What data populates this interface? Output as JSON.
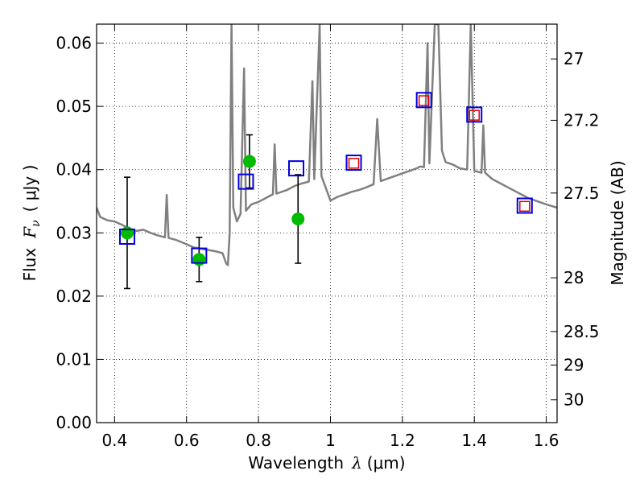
{
  "chart_data": {
    "type": "scatter",
    "title": "",
    "xlabel": {
      "prefix": "Wavelength",
      "symbol": "λ",
      "unit": "(μm)"
    },
    "ylabel": {
      "prefix": "Flux",
      "symbol": "F",
      "sub": "ν",
      "unit": "( μJy )"
    },
    "ylabel_right": "Magnitude (AB)",
    "xlim": [
      0.35,
      1.63
    ],
    "ylim": [
      0.0,
      0.063
    ],
    "grid": true,
    "x_ticks": [
      0.4,
      0.6,
      0.8,
      1.0,
      1.2,
      1.4,
      1.6
    ],
    "x_tick_labels": [
      "0.4",
      "0.6",
      "0.8",
      "1",
      "1.2",
      "1.4",
      "1.6"
    ],
    "y_ticks": [
      0.0,
      0.01,
      0.02,
      0.03,
      0.04,
      0.05,
      0.06
    ],
    "y_tick_labels": [
      "0.00",
      "0.01",
      "0.02",
      "0.03",
      "0.04",
      "0.05",
      "0.06"
    ],
    "right_ticks": [
      {
        "label": "27",
        "flux": 0.0575
      },
      {
        "label": "27.2",
        "flux": 0.0478
      },
      {
        "label": "27.5",
        "flux": 0.0363
      },
      {
        "label": "28",
        "flux": 0.0229
      },
      {
        "label": "28.5",
        "flux": 0.0144
      },
      {
        "label": "29",
        "flux": 0.0091
      },
      {
        "label": "30",
        "flux": 0.0036
      }
    ],
    "series": [
      {
        "kind": "model-spectrum",
        "color": "#808080",
        "points": [
          [
            0.35,
            0.034
          ],
          [
            0.36,
            0.0325
          ],
          [
            0.38,
            0.032
          ],
          [
            0.4,
            0.0318
          ],
          [
            0.42,
            0.0313
          ],
          [
            0.44,
            0.0307
          ],
          [
            0.46,
            0.0303
          ],
          [
            0.48,
            0.0305
          ],
          [
            0.5,
            0.03
          ],
          [
            0.52,
            0.0296
          ],
          [
            0.54,
            0.0293
          ],
          [
            0.545,
            0.036
          ],
          [
            0.55,
            0.0292
          ],
          [
            0.57,
            0.0289
          ],
          [
            0.6,
            0.0282
          ],
          [
            0.62,
            0.0277
          ],
          [
            0.64,
            0.0275
          ],
          [
            0.66,
            0.0273
          ],
          [
            0.68,
            0.0271
          ],
          [
            0.7,
            0.0268
          ],
          [
            0.71,
            0.0252
          ],
          [
            0.715,
            0.0249
          ],
          [
            0.72,
            0.03
          ],
          [
            0.725,
            0.063
          ],
          [
            0.73,
            0.034
          ],
          [
            0.74,
            0.0318
          ],
          [
            0.75,
            0.033
          ],
          [
            0.76,
            0.056
          ],
          [
            0.765,
            0.0335
          ],
          [
            0.78,
            0.0345
          ],
          [
            0.8,
            0.0349
          ],
          [
            0.82,
            0.0355
          ],
          [
            0.84,
            0.0361
          ],
          [
            0.845,
            0.044
          ],
          [
            0.85,
            0.0362
          ],
          [
            0.86,
            0.0364
          ],
          [
            0.88,
            0.0368
          ],
          [
            0.9,
            0.0374
          ],
          [
            0.92,
            0.0378
          ],
          [
            0.94,
            0.0381
          ],
          [
            0.95,
            0.054
          ],
          [
            0.955,
            0.0385
          ],
          [
            0.97,
            0.063
          ],
          [
            0.975,
            0.039
          ],
          [
            1.0,
            0.0351
          ],
          [
            1.02,
            0.0357
          ],
          [
            1.04,
            0.0361
          ],
          [
            1.06,
            0.0365
          ],
          [
            1.08,
            0.0368
          ],
          [
            1.1,
            0.0372
          ],
          [
            1.12,
            0.0377
          ],
          [
            1.13,
            0.048
          ],
          [
            1.14,
            0.0382
          ],
          [
            1.16,
            0.0386
          ],
          [
            1.18,
            0.039
          ],
          [
            1.2,
            0.0394
          ],
          [
            1.22,
            0.0398
          ],
          [
            1.24,
            0.0402
          ],
          [
            1.25,
            0.0405
          ],
          [
            1.26,
            0.0404
          ],
          [
            1.27,
            0.06
          ],
          [
            1.275,
            0.041
          ],
          [
            1.29,
            0.063
          ],
          [
            1.3,
            0.063
          ],
          [
            1.31,
            0.043
          ],
          [
            1.32,
            0.0412
          ],
          [
            1.34,
            0.0408
          ],
          [
            1.36,
            0.0402
          ],
          [
            1.38,
            0.04
          ],
          [
            1.39,
            0.063
          ],
          [
            1.4,
            0.0398
          ],
          [
            1.42,
            0.0395
          ],
          [
            1.425,
            0.047
          ],
          [
            1.43,
            0.0395
          ],
          [
            1.45,
            0.0385
          ],
          [
            1.5,
            0.037
          ],
          [
            1.55,
            0.0355
          ],
          [
            1.6,
            0.0345
          ],
          [
            1.63,
            0.034
          ]
        ]
      },
      {
        "kind": "observed",
        "color": "#00bb00",
        "points": [
          {
            "x": 0.435,
            "y": 0.03,
            "err": 0.0088
          },
          {
            "x": 0.635,
            "y": 0.0258,
            "err": 0.0035
          },
          {
            "x": 0.775,
            "y": 0.0413,
            "err": 0.0042
          },
          {
            "x": 0.91,
            "y": 0.0322,
            "err": 0.007
          }
        ]
      },
      {
        "kind": "model-blue-squares",
        "color": "#0000dd",
        "points": [
          [
            0.435,
            0.0294
          ],
          [
            0.635,
            0.0264
          ],
          [
            0.765,
            0.0381
          ],
          [
            0.905,
            0.0402
          ],
          [
            1.065,
            0.0411
          ],
          [
            1.26,
            0.051
          ],
          [
            1.4,
            0.0487
          ],
          [
            1.54,
            0.0343
          ]
        ]
      },
      {
        "kind": "model-red-squares",
        "color": "#dd0000",
        "points": [
          [
            1.065,
            0.041
          ],
          [
            1.26,
            0.0509
          ],
          [
            1.4,
            0.0486
          ],
          [
            1.54,
            0.0342
          ]
        ]
      }
    ]
  }
}
